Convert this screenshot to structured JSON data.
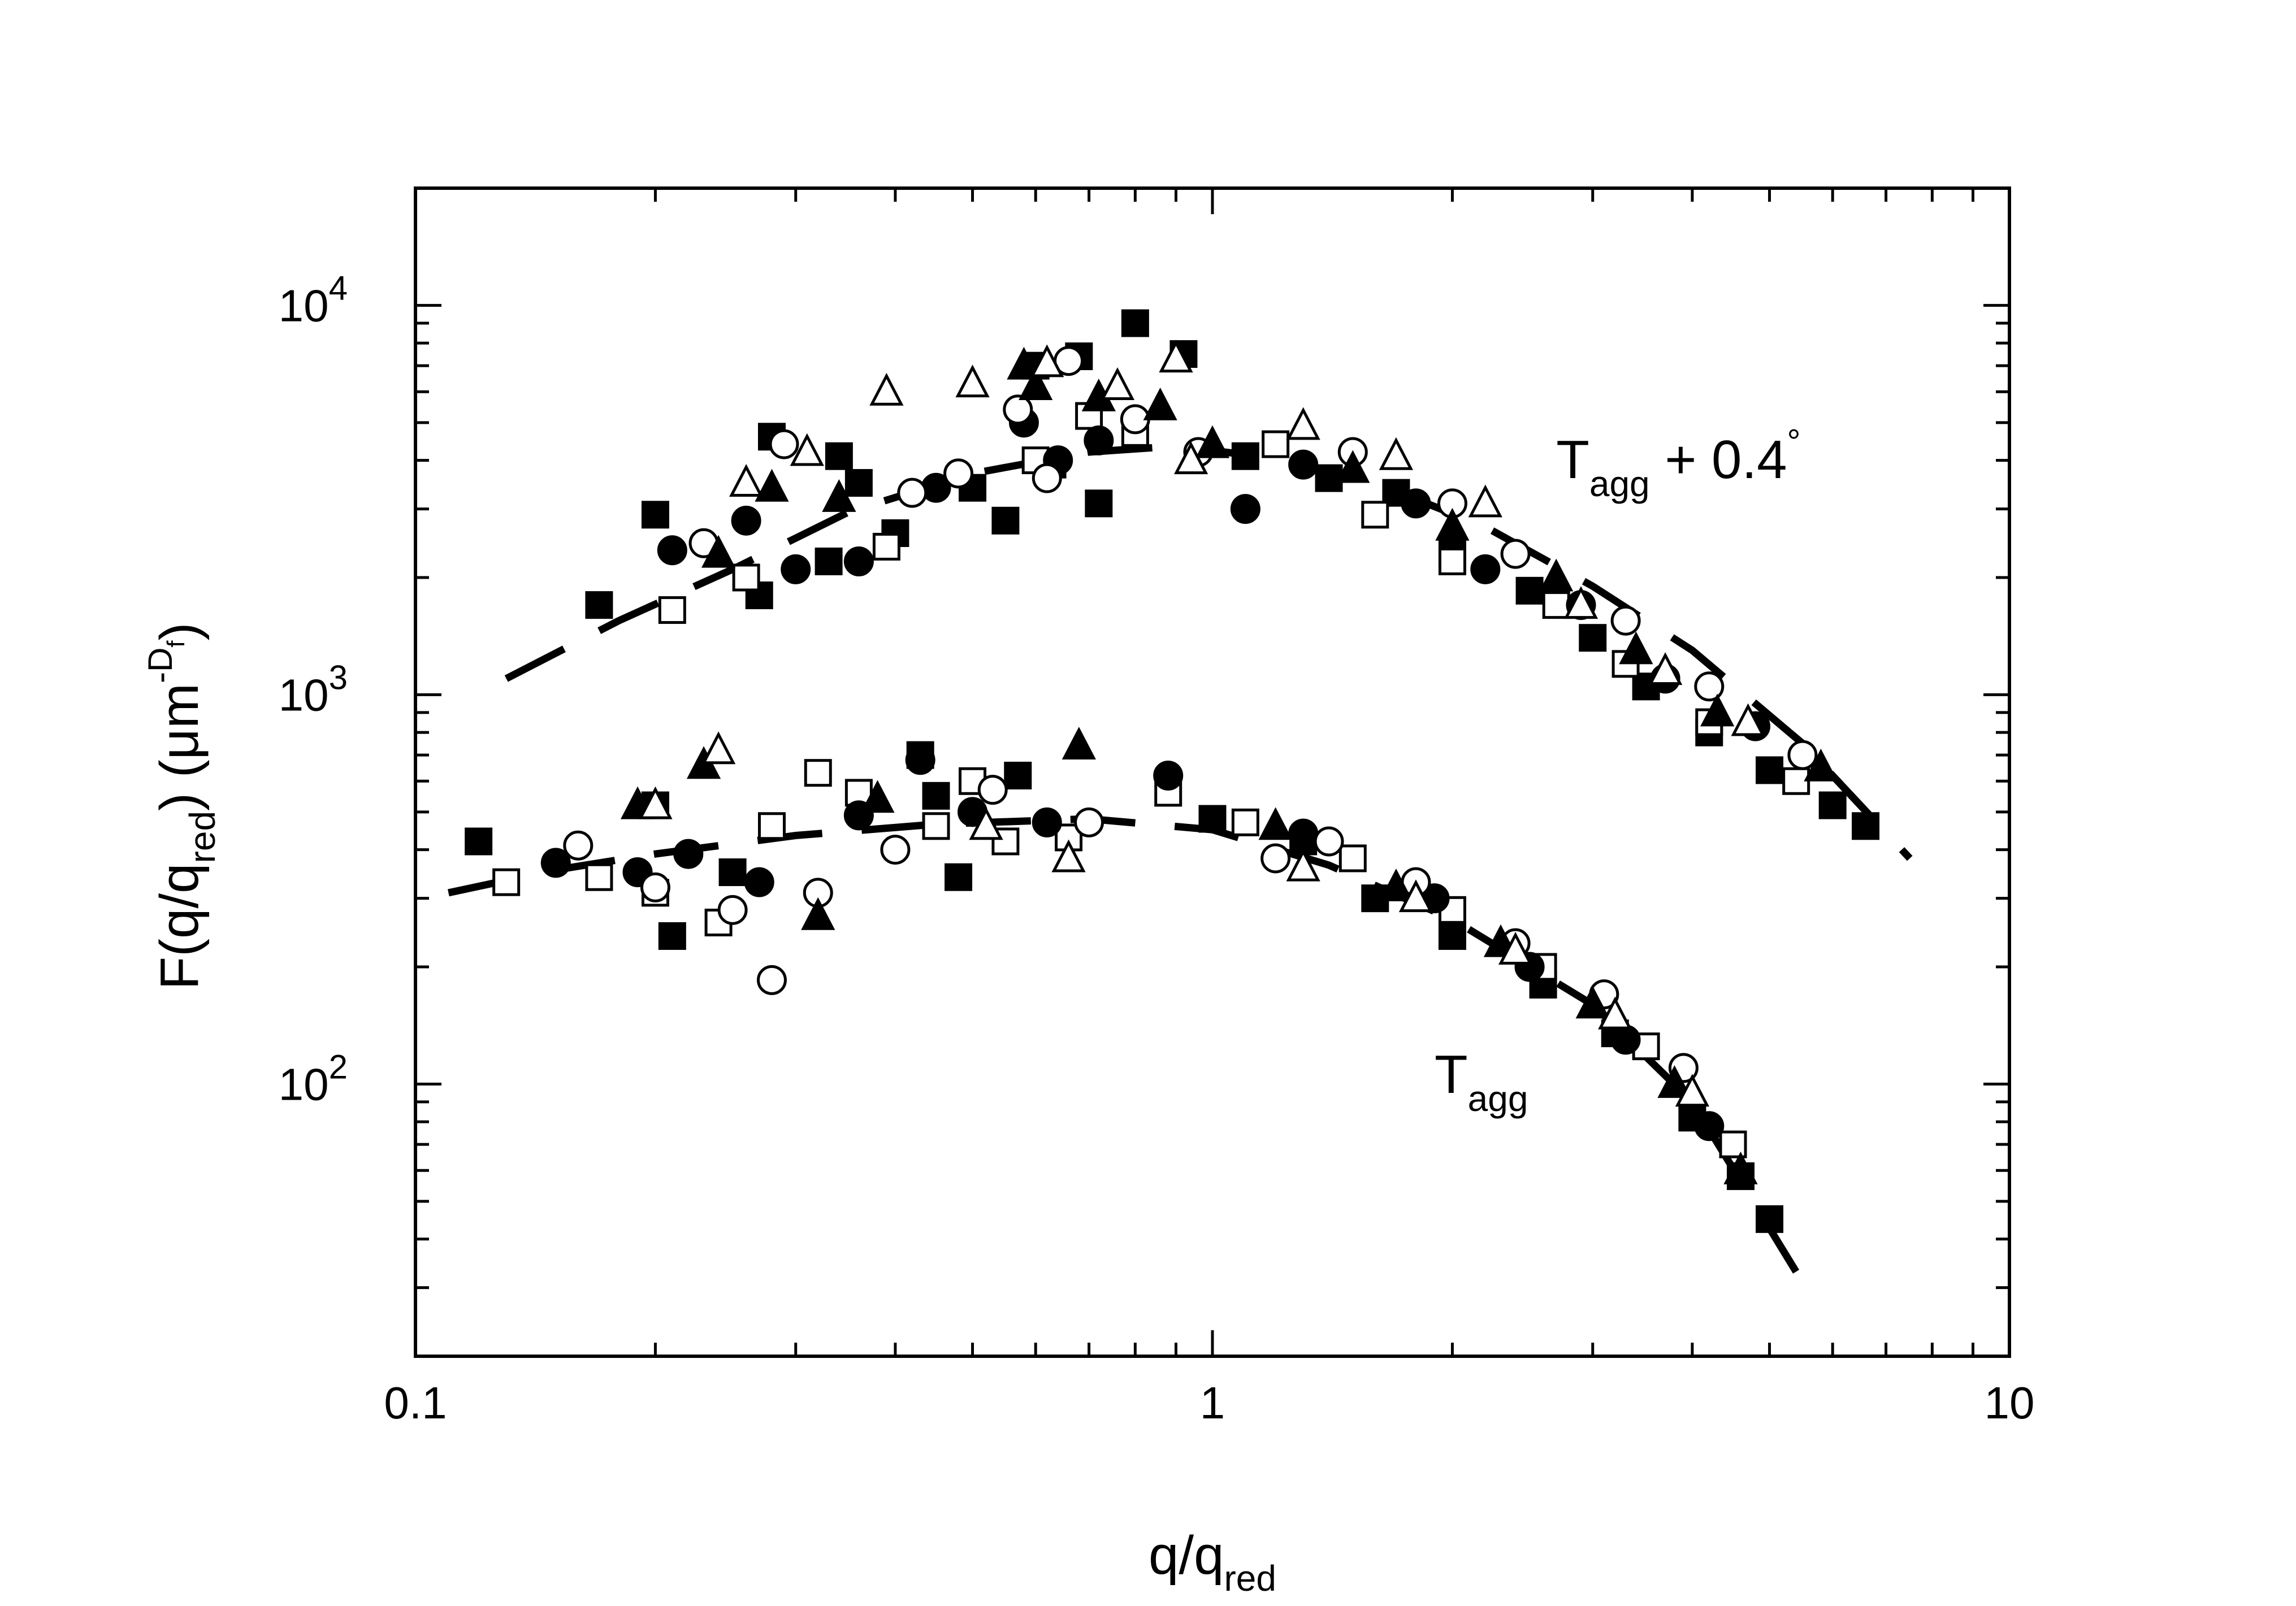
{
  "chart_data": {
    "type": "scatter",
    "title": "",
    "xscale": "log",
    "yscale": "log",
    "xlim": [
      0.1,
      10
    ],
    "ylim": [
      20,
      20000
    ],
    "x_tick_labels": [
      {
        "value": 0.1,
        "label": "0.1"
      },
      {
        "value": 1,
        "label": "1"
      },
      {
        "value": 10,
        "label": "10"
      }
    ],
    "y_tick_labels": [
      {
        "value": 100,
        "base": "10",
        "exp": "2"
      },
      {
        "value": 1000,
        "base": "10",
        "exp": "3"
      },
      {
        "value": 10000,
        "base": "10",
        "exp": "4"
      }
    ],
    "xlabel": {
      "main": "q/q",
      "sub": "red"
    },
    "ylabel": {
      "p1": "F(q/q",
      "sub1": "red",
      "p2": ") (μm",
      "sup": "-D",
      "supsub": "f",
      "p3": ")"
    },
    "annotations": [
      {
        "name": "tagg-plus",
        "base": "T",
        "sub": "agg",
        "rest": " + 0.4",
        "sup": "°",
        "x": 2.7,
        "y": 3600
      },
      {
        "name": "tagg",
        "base": "T",
        "sub": "agg",
        "rest": "",
        "sup": "",
        "x": 1.9,
        "y": 95
      }
    ],
    "fit_lines": [
      {
        "name": "fit-upper",
        "style": "dashed",
        "points": [
          [
            0.13,
            1100
          ],
          [
            0.18,
            1550
          ],
          [
            0.25,
            2100
          ],
          [
            0.35,
            2950
          ],
          [
            0.5,
            3700
          ],
          [
            0.7,
            4200
          ],
          [
            0.9,
            4350
          ],
          [
            1.2,
            4050
          ],
          [
            1.6,
            3500
          ],
          [
            2.2,
            2700
          ],
          [
            3.0,
            1900
          ],
          [
            4.0,
            1300
          ],
          [
            5.5,
            750
          ],
          [
            7.5,
            380
          ]
        ]
      },
      {
        "name": "fit-lower",
        "style": "dashed",
        "points": [
          [
            0.11,
            310
          ],
          [
            0.15,
            355
          ],
          [
            0.2,
            390
          ],
          [
            0.3,
            435
          ],
          [
            0.45,
            465
          ],
          [
            0.7,
            480
          ],
          [
            1.0,
            450
          ],
          [
            1.4,
            365
          ],
          [
            2.0,
            265
          ],
          [
            3.0,
            160
          ],
          [
            4.0,
            90
          ],
          [
            5.5,
            31
          ]
        ]
      }
    ],
    "series": [
      {
        "marker": "filled-square",
        "values": [
          [
            0.12,
            420
          ],
          [
            0.17,
            1700
          ],
          [
            0.2,
            520
          ],
          [
            0.2,
            2900
          ],
          [
            0.21,
            240
          ],
          [
            0.25,
            350
          ],
          [
            0.27,
            1800
          ],
          [
            0.28,
            4600
          ],
          [
            0.33,
            2200
          ],
          [
            0.34,
            4100
          ],
          [
            0.36,
            3500
          ],
          [
            0.4,
            2600
          ],
          [
            0.43,
            700
          ],
          [
            0.45,
            550
          ],
          [
            0.48,
            340
          ],
          [
            0.5,
            3400
          ],
          [
            0.55,
            2800
          ],
          [
            0.57,
            620
          ],
          [
            0.6,
            7000
          ],
          [
            0.63,
            3900
          ],
          [
            0.68,
            7400
          ],
          [
            0.72,
            3100
          ],
          [
            0.8,
            9000
          ],
          [
            0.92,
            7500
          ],
          [
            1.1,
            4100
          ],
          [
            1.4,
            3600
          ],
          [
            1.7,
            3300
          ],
          [
            2.0,
            2300
          ],
          [
            2.5,
            1850
          ],
          [
            3.0,
            1400
          ],
          [
            3.5,
            1050
          ],
          [
            4.2,
            800
          ],
          [
            5.0,
            640
          ],
          [
            6.0,
            520
          ],
          [
            6.6,
            460
          ],
          [
            1.0,
            480
          ],
          [
            1.3,
            420
          ],
          [
            1.6,
            300
          ],
          [
            2.0,
            240
          ],
          [
            2.6,
            180
          ],
          [
            3.2,
            135
          ],
          [
            4.0,
            82
          ],
          [
            4.6,
            58
          ],
          [
            5.0,
            45
          ]
        ]
      },
      {
        "marker": "open-square",
        "values": [
          [
            0.13,
            330
          ],
          [
            0.17,
            340
          ],
          [
            0.2,
            310
          ],
          [
            0.21,
            1650
          ],
          [
            0.24,
            260
          ],
          [
            0.26,
            2000
          ],
          [
            0.28,
            460
          ],
          [
            0.32,
            630
          ],
          [
            0.36,
            560
          ],
          [
            0.39,
            2400
          ],
          [
            0.45,
            460
          ],
          [
            0.5,
            600
          ],
          [
            0.55,
            420
          ],
          [
            0.6,
            4000
          ],
          [
            0.66,
            430
          ],
          [
            0.7,
            5200
          ],
          [
            0.8,
            4700
          ],
          [
            0.88,
            560
          ],
          [
            1.2,
            4400
          ],
          [
            1.6,
            2900
          ],
          [
            2.0,
            2200
          ],
          [
            2.7,
            1700
          ],
          [
            3.3,
            1200
          ],
          [
            4.2,
            850
          ],
          [
            5.4,
            600
          ],
          [
            1.1,
            470
          ],
          [
            1.5,
            380
          ],
          [
            2.0,
            280
          ],
          [
            2.6,
            200
          ],
          [
            3.5,
            125
          ],
          [
            4.5,
            70
          ]
        ]
      },
      {
        "marker": "filled-circle",
        "values": [
          [
            0.15,
            370
          ],
          [
            0.19,
            350
          ],
          [
            0.21,
            2350
          ],
          [
            0.22,
            390
          ],
          [
            0.26,
            2800
          ],
          [
            0.27,
            330
          ],
          [
            0.3,
            2100
          ],
          [
            0.36,
            2200
          ],
          [
            0.36,
            490
          ],
          [
            0.43,
            680
          ],
          [
            0.45,
            3400
          ],
          [
            0.5,
            500
          ],
          [
            0.58,
            5000
          ],
          [
            0.62,
            470
          ],
          [
            0.64,
            4000
          ],
          [
            0.72,
            4500
          ],
          [
            0.88,
            620
          ],
          [
            1.1,
            3000
          ],
          [
            1.3,
            3900
          ],
          [
            1.8,
            3100
          ],
          [
            2.2,
            2100
          ],
          [
            2.9,
            1700
          ],
          [
            3.7,
            1100
          ],
          [
            4.8,
            830
          ],
          [
            1.3,
            440
          ],
          [
            1.9,
            300
          ],
          [
            2.5,
            200
          ],
          [
            3.3,
            130
          ],
          [
            4.2,
            78
          ]
        ]
      },
      {
        "marker": "open-circle",
        "values": [
          [
            0.16,
            410
          ],
          [
            0.2,
            320
          ],
          [
            0.23,
            2450
          ],
          [
            0.25,
            280
          ],
          [
            0.29,
            4400
          ],
          [
            0.28,
            185
          ],
          [
            0.32,
            310
          ],
          [
            0.4,
            400
          ],
          [
            0.42,
            3300
          ],
          [
            0.48,
            3700
          ],
          [
            0.53,
            570
          ],
          [
            0.57,
            5400
          ],
          [
            0.62,
            3600
          ],
          [
            0.66,
            7200
          ],
          [
            0.7,
            470
          ],
          [
            0.8,
            5100
          ],
          [
            0.96,
            4200
          ],
          [
            1.2,
            380
          ],
          [
            1.5,
            4200
          ],
          [
            2.0,
            3100
          ],
          [
            2.4,
            2300
          ],
          [
            3.3,
            1550
          ],
          [
            4.2,
            1050
          ],
          [
            5.5,
            700
          ],
          [
            1.4,
            420
          ],
          [
            1.8,
            330
          ],
          [
            2.4,
            230
          ],
          [
            3.1,
            170
          ],
          [
            3.9,
            110
          ]
        ]
      },
      {
        "marker": "filled-triangle",
        "values": [
          [
            0.19,
            520
          ],
          [
            0.23,
            660
          ],
          [
            0.24,
            2300
          ],
          [
            0.28,
            3400
          ],
          [
            0.32,
            270
          ],
          [
            0.34,
            3200
          ],
          [
            0.38,
            540
          ],
          [
            0.58,
            7000
          ],
          [
            0.6,
            6200
          ],
          [
            0.68,
            740
          ],
          [
            0.72,
            5800
          ],
          [
            0.86,
            5500
          ],
          [
            1.0,
            4400
          ],
          [
            1.5,
            3800
          ],
          [
            2.0,
            2700
          ],
          [
            2.7,
            2000
          ],
          [
            3.4,
            1300
          ],
          [
            4.3,
            900
          ],
          [
            5.8,
            650
          ],
          [
            1.2,
            460
          ],
          [
            1.7,
            320
          ],
          [
            2.3,
            230
          ],
          [
            3.0,
            160
          ],
          [
            3.8,
            100
          ],
          [
            4.6,
            60
          ]
        ]
      },
      {
        "marker": "open-triangle",
        "values": [
          [
            0.2,
            520
          ],
          [
            0.24,
            720
          ],
          [
            0.26,
            3500
          ],
          [
            0.31,
            4200
          ],
          [
            0.39,
            6000
          ],
          [
            0.5,
            6300
          ],
          [
            0.52,
            460
          ],
          [
            0.62,
            7100
          ],
          [
            0.66,
            380
          ],
          [
            0.76,
            6200
          ],
          [
            0.9,
            7300
          ],
          [
            0.94,
            4000
          ],
          [
            1.3,
            4900
          ],
          [
            1.7,
            4100
          ],
          [
            2.2,
            3100
          ],
          [
            2.9,
            1700
          ],
          [
            3.7,
            1150
          ],
          [
            4.7,
            850
          ],
          [
            1.3,
            360
          ],
          [
            1.8,
            300
          ],
          [
            2.4,
            220
          ],
          [
            3.2,
            150
          ],
          [
            4.0,
            95
          ]
        ]
      }
    ]
  }
}
